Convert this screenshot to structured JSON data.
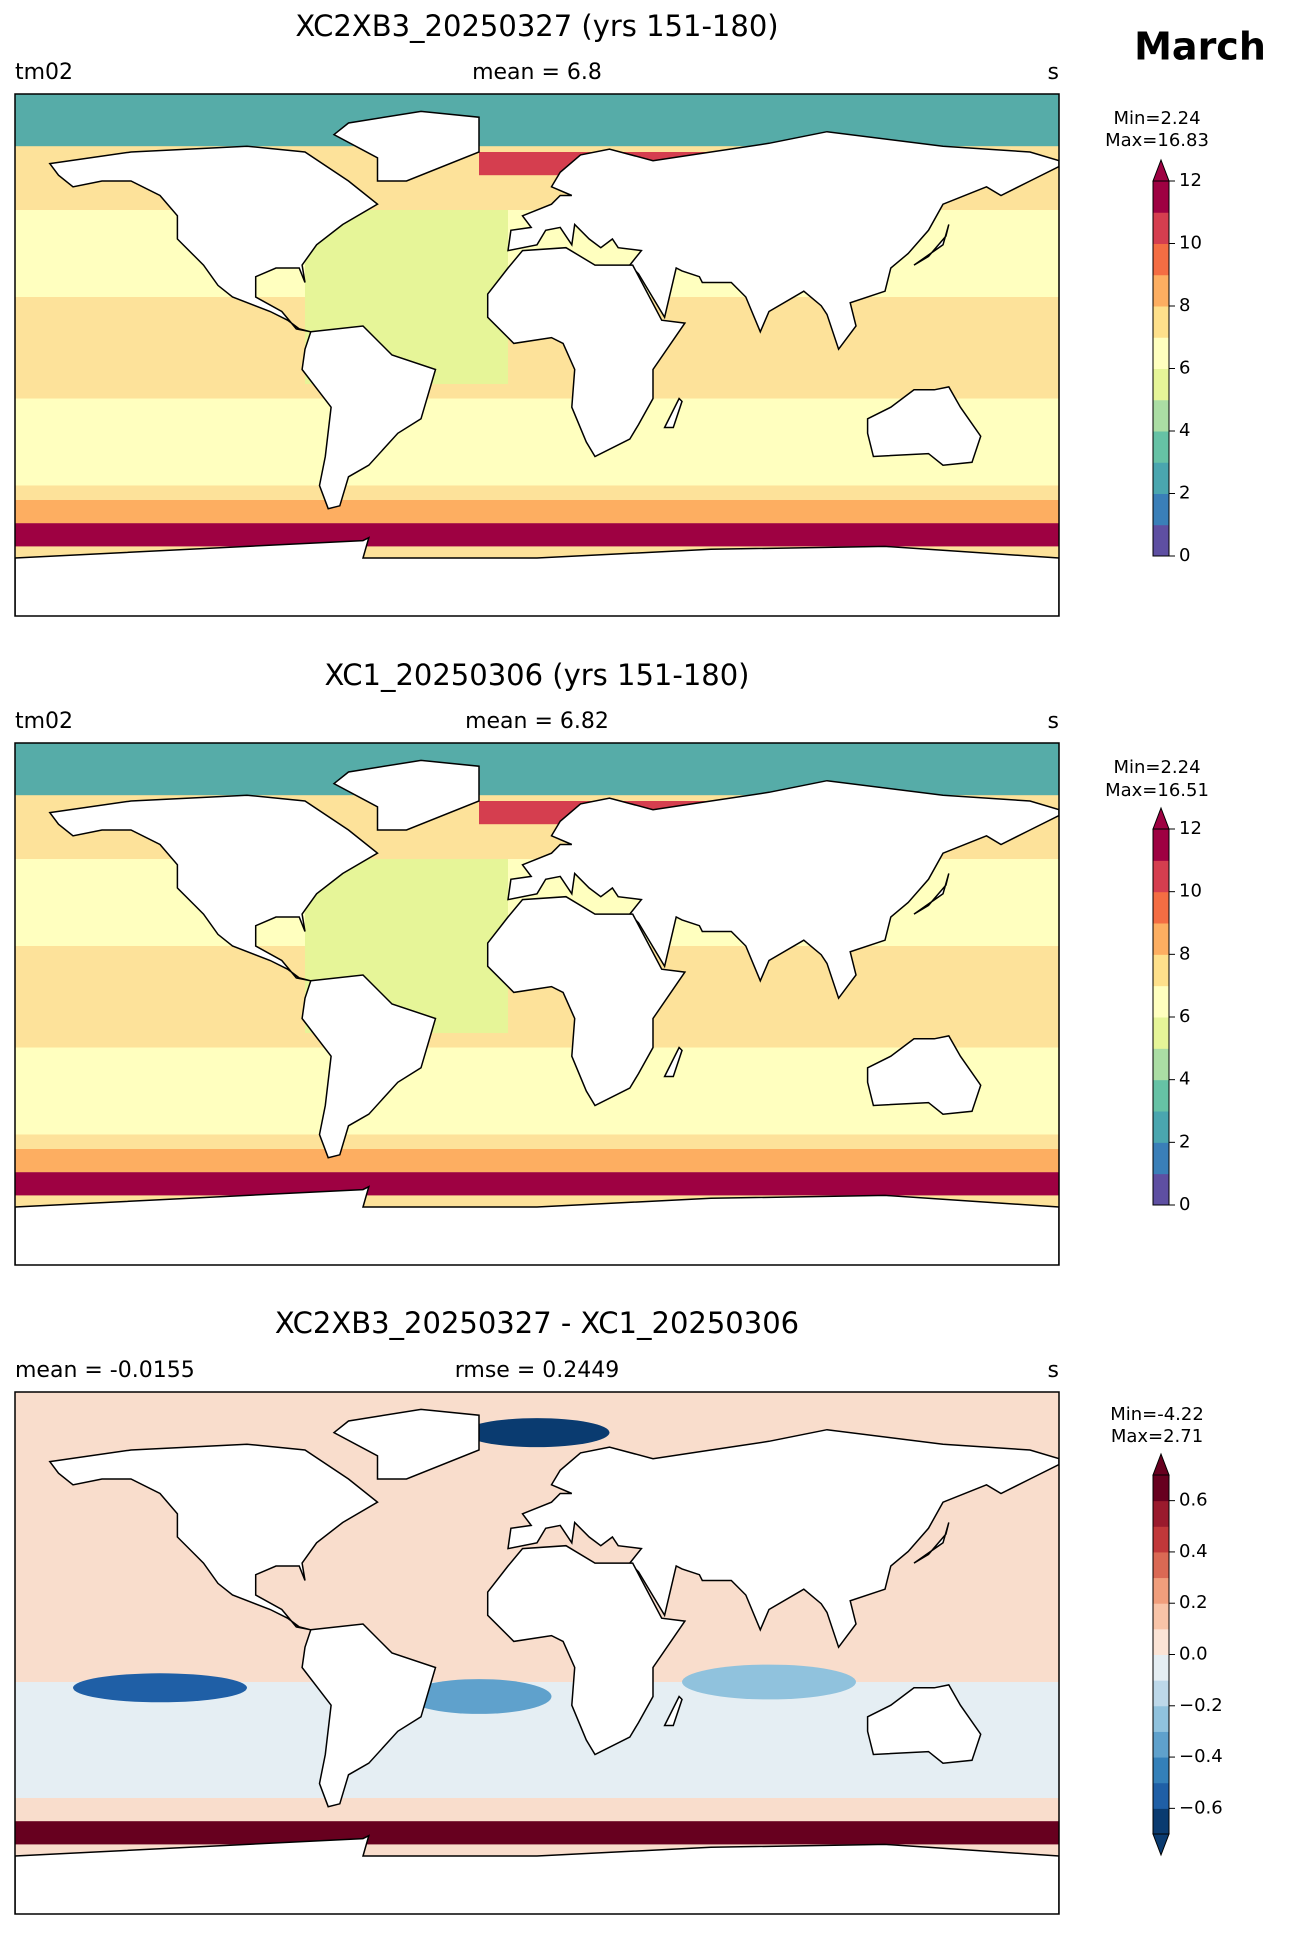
{
  "figure": {
    "title": "March",
    "panels": [
      {
        "title": "XC2XB3_20250327 (yrs 151-180)",
        "left": "tm02",
        "center": "mean = 6.8",
        "right": "s",
        "min_label": "Min=2.24",
        "max_label": "Max=16.83",
        "colorbar": {
          "lim": [
            0,
            12
          ],
          "ticks": [
            0,
            2,
            4,
            6,
            8,
            10,
            12
          ],
          "extend": "max",
          "colors": [
            "#5e4fa2",
            "#3a7fb8",
            "#4aa6af",
            "#66c2a5",
            "#abdda4",
            "#e6f598",
            "#ffffbf",
            "#fee08b",
            "#fdae61",
            "#f46d43",
            "#d53e4f",
            "#9e0142"
          ]
        }
      },
      {
        "title": "XC1_20250306 (yrs 151-180)",
        "left": "tm02",
        "center": "mean = 6.82",
        "right": "s",
        "min_label": "Min=2.24",
        "max_label": "Max=16.51",
        "colorbar": {
          "lim": [
            0,
            12
          ],
          "ticks": [
            0,
            2,
            4,
            6,
            8,
            10,
            12
          ],
          "extend": "max",
          "colors": [
            "#5e4fa2",
            "#3a7fb8",
            "#4aa6af",
            "#66c2a5",
            "#abdda4",
            "#e6f598",
            "#ffffbf",
            "#fee08b",
            "#fdae61",
            "#f46d43",
            "#d53e4f",
            "#9e0142"
          ]
        }
      },
      {
        "title": "XC2XB3_20250327 - XC1_20250306",
        "left": "mean = -0.0155",
        "center": "rmse = 0.2449",
        "right": "s",
        "min_label": "Min=-4.22",
        "max_label": "Max=2.71",
        "colorbar": {
          "lim": [
            -0.7,
            0.7
          ],
          "extend": "both",
          "ticks": [
            {
              "value": -0.6,
              "label": "−0.6"
            },
            {
              "value": -0.4,
              "label": "−0.4"
            },
            {
              "value": -0.2,
              "label": "−0.2"
            },
            {
              "value": 0,
              "label": "0.0"
            },
            0.2,
            0.4,
            0.6
          ],
          "colors": [
            "#0a3b70",
            "#1f5fa6",
            "#3480b9",
            "#5fa1cc",
            "#90c2dd",
            "#bdd8e9",
            "#e5eef3",
            "#fbe4d6",
            "#f8c4a8",
            "#f09e7c",
            "#da6954",
            "#c1383a",
            "#9a1a2d",
            "#67001f"
          ]
        }
      }
    ]
  }
}
